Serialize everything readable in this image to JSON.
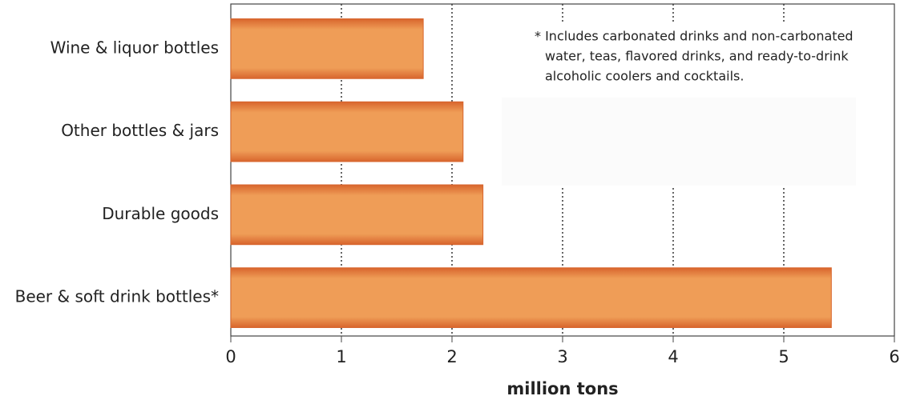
{
  "chart_data": {
    "type": "barh",
    "categories": [
      "Wine & liquor bottles",
      "Other bottles & jars",
      "Durable goods",
      "Beer & soft drink bottles*"
    ],
    "values": [
      1.74,
      2.1,
      2.28,
      5.43
    ],
    "color": "#ef9d57",
    "xlim": [
      0,
      6
    ],
    "xticks": [
      0,
      1,
      2,
      3,
      4,
      5,
      6
    ],
    "xlabel": "million tons",
    "grid": true,
    "annotation": [
      "* Includes carbonated drinks and non-carbonated",
      "water, teas, flavored drinks, and ready-to-drink",
      "alcoholic coolers and cocktails."
    ]
  }
}
